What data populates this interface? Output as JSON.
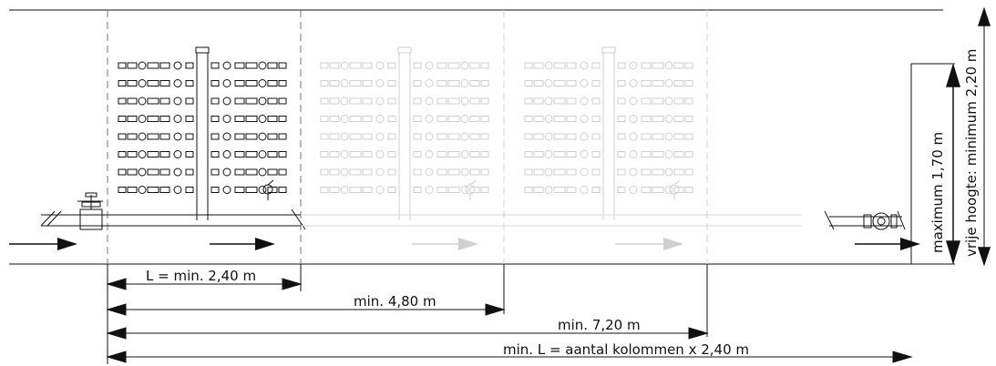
{
  "labels": {
    "dim_single": "L = min. 2,40 m",
    "dim_double": "min. 4,80 m",
    "dim_triple": "min. 7,20 m",
    "dim_total": "min. L = aantal kolommen x 2,40 m",
    "max_height": "maximum 1,70 m",
    "clear_height": "vrije hoogte: minimum 2,20 m"
  },
  "colors": {
    "line": "#111111",
    "faded": "#cfcfcf",
    "dashed": "#777777"
  },
  "icons": {
    "inlet_valve": "gate-valve-icon",
    "outlet_meter": "water-meter-icon",
    "meter_row": "meter-row-icon"
  }
}
